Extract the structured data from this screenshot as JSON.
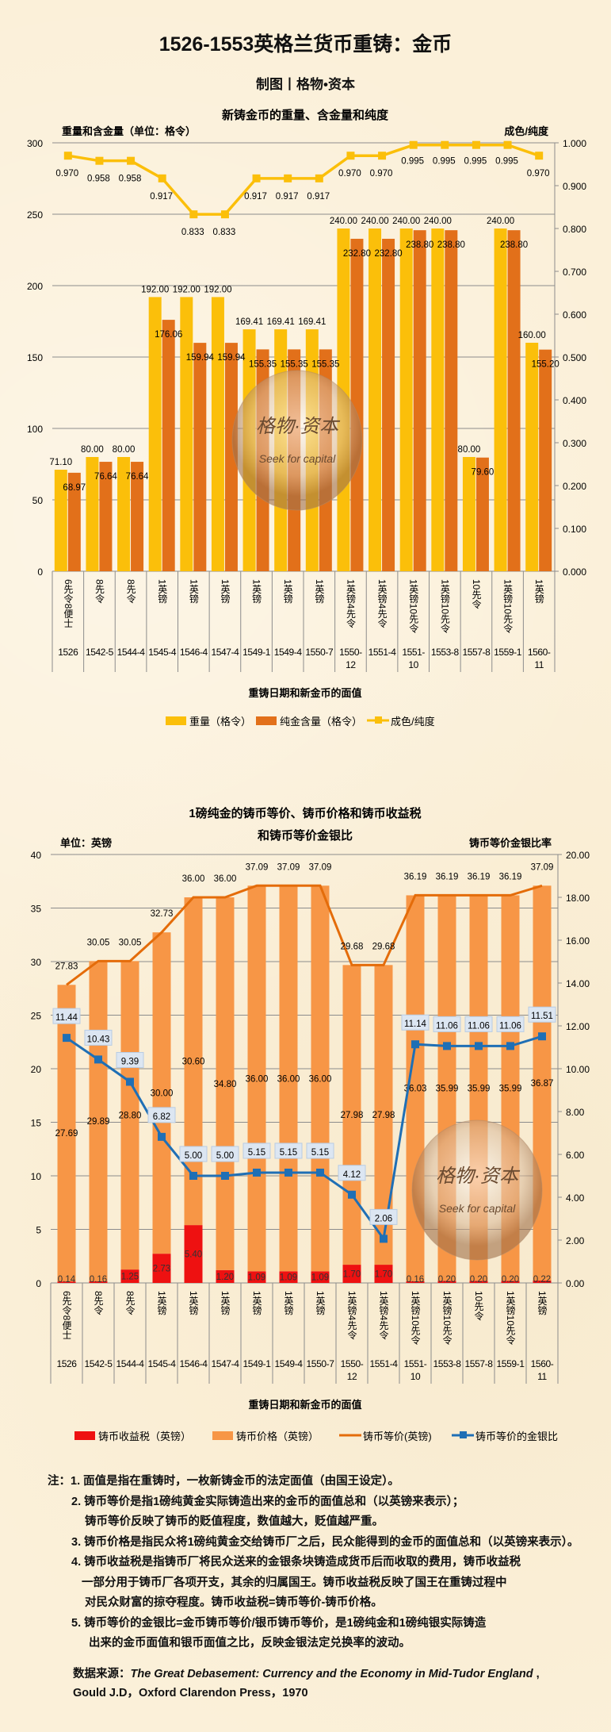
{
  "header": {
    "title": "1526-1553英格兰货币重铸：金币",
    "subtitle": "制图丨格物•资本"
  },
  "watermark": {
    "line1": "格物·资本",
    "line2": "Seek for capital"
  },
  "categories": {
    "dates": [
      "1526",
      "1542-5",
      "1544-4",
      "1545-4",
      "1546-4",
      "1547-4",
      "1549-1",
      "1549-4",
      "1550-7",
      "1550-12",
      "1551-4",
      "1551-10",
      "1553-8",
      "1557-8",
      "1559-1",
      "1560-11"
    ],
    "denominations": [
      "6先令8便士",
      "8先令",
      "8先令",
      "1英镑",
      "1英镑",
      "1英镑",
      "1英镑",
      "1英镑",
      "1英镑",
      "1英镑4先令",
      "1英镑4先令",
      "1英镑10先令",
      "1英镑10先令",
      "10先令",
      "1英镑10先令",
      "1英镑"
    ]
  },
  "chart_data": [
    {
      "type": "bar",
      "title": "新铸金币的重量、含金量和纯度",
      "ylabel": "重量和含金量（单位：格令）",
      "y2label": "成色/纯度",
      "xlabel": "重铸日期和新金币的面值",
      "ylim": [
        0,
        300
      ],
      "yticks": [
        0,
        50,
        100,
        150,
        200,
        250,
        300
      ],
      "y2lim": [
        0,
        1
      ],
      "y2ticks": [
        "0.000",
        "0.100",
        "0.200",
        "0.300",
        "0.400",
        "0.500",
        "0.600",
        "0.700",
        "0.800",
        "0.900",
        "1.000"
      ],
      "grid": true,
      "legend": "bottom",
      "series": [
        {
          "name": "重量（格令）",
          "kind": "bar",
          "color": "#fbbf0a",
          "values": [
            71.1,
            80.0,
            80.0,
            192.0,
            192.0,
            192.0,
            169.41,
            169.41,
            169.41,
            240.0,
            240.0,
            240.0,
            240.0,
            80.0,
            240.0,
            160.0
          ]
        },
        {
          "name": "纯金含量（格令）",
          "kind": "bar",
          "color": "#e2701a",
          "values": [
            68.97,
            76.64,
            76.64,
            176.06,
            159.94,
            159.94,
            155.35,
            155.35,
            155.35,
            232.8,
            232.8,
            238.8,
            238.8,
            79.6,
            238.8,
            155.2
          ]
        },
        {
          "name": "成色/纯度",
          "kind": "line",
          "axis": "right",
          "color": "#fbbf0a",
          "values": [
            0.97,
            0.958,
            0.958,
            0.917,
            0.833,
            0.833,
            0.917,
            0.917,
            0.917,
            0.97,
            0.97,
            0.995,
            0.995,
            0.995,
            0.995,
            0.97
          ]
        }
      ]
    },
    {
      "type": "bar",
      "title": "1磅纯金的铸币等价、铸币价格和铸币收益税",
      "title2": "和铸币等价金银比",
      "ylabel": "单位：英镑",
      "y2label": "铸币等价金银比率",
      "xlabel": "重铸日期和新金币的面值",
      "ylim": [
        0,
        40
      ],
      "yticks": [
        0,
        5,
        10,
        15,
        20,
        25,
        30,
        35,
        40
      ],
      "y2lim": [
        0,
        20
      ],
      "y2ticks": [
        "0.00",
        "2.00",
        "4.00",
        "6.00",
        "8.00",
        "10.00",
        "12.00",
        "14.00",
        "16.00",
        "18.00",
        "20.00"
      ],
      "grid": true,
      "legend": "bottom",
      "stacked": true,
      "series": [
        {
          "name": "铸币收益税（英镑）",
          "kind": "bar",
          "color": "#ee1111",
          "values": [
            0.14,
            0.16,
            1.25,
            2.73,
            5.4,
            1.2,
            1.09,
            1.09,
            1.09,
            1.7,
            1.7,
            0.16,
            0.2,
            0.2,
            0.2,
            0.22
          ]
        },
        {
          "name": "铸币价格（英镑）",
          "kind": "bar",
          "color": "#f79646",
          "values": [
            27.69,
            29.89,
            28.8,
            30.0,
            30.6,
            34.8,
            36.0,
            36.0,
            36.0,
            27.98,
            27.98,
            36.03,
            35.99,
            35.99,
            35.99,
            36.87
          ]
        },
        {
          "name": "铸币等价(英镑)",
          "kind": "line",
          "color": "#e46c0a",
          "values": [
            27.83,
            30.05,
            30.05,
            32.73,
            36.0,
            36.0,
            37.09,
            37.09,
            37.09,
            29.68,
            29.68,
            36.19,
            36.19,
            36.19,
            36.19,
            37.09
          ]
        },
        {
          "name": "铸币等价的金银比",
          "kind": "line",
          "axis": "right",
          "color": "#1f6fb5",
          "values": [
            11.44,
            10.43,
            9.39,
            6.82,
            5.0,
            5.0,
            5.15,
            5.15,
            5.15,
            4.12,
            2.06,
            11.14,
            11.06,
            11.06,
            11.06,
            11.51
          ]
        }
      ]
    }
  ],
  "notes": [
    "注：1. 面值是指在重铸时，一枚新铸金币的法定面值（由国王设定）。",
    "2. 铸币等价是指1磅纯黄金实际铸造出来的金币的面值总和（以英镑来表示）；",
    "铸币等价反映了铸币的贬值程度，数值越大，贬值越严重。",
    "3. 铸币价格是指民众将1磅纯黄金交给铸币厂之后，民众能得到的金币的面值总和（以英镑来表示）。",
    "4. 铸币收益税是指铸币厂将民众送来的金银条块铸造成货币后而收取的费用，铸币收益税",
    "一部分用于铸币厂各项开支，其余的归属国王。铸币收益税反映了国王在重铸过程中",
    "对民众财富的掠夺程度。铸币收益税=铸币等价-铸币价格。",
    "5. 铸币等价的金银比=金币铸币等价/银币铸币等价，是1磅纯金和1磅纯银实际铸造",
    "出来的金币面值和银币面值之比，反映金银法定兑换率的波动。"
  ],
  "source": {
    "label": "数据来源：",
    "book": "The Great Debasement: Currency and the Economy in Mid-Tudor England",
    "rest": "Gould  J.D，Oxford Clarendon Press，1970"
  }
}
